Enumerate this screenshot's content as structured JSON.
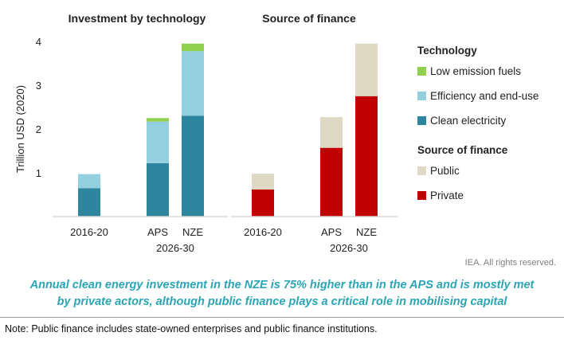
{
  "credit": "IEA. All rights reserved.",
  "caption_line1": "Annual clean energy investment in the NZE is 75% higher than in the APS and is mostly met",
  "caption_line2": "by private actors, although public finance plays a critical role in mobilising capital",
  "note": "Note: Public finance includes state-owned enterprises and public finance institutions.",
  "colors": {
    "low_emission_fuels": "#92d050",
    "efficiency_end_use": "#93cfde",
    "clean_electricity": "#2e869e",
    "public": "#ddd9c4",
    "private": "#c00000",
    "axis": "#d9d9d9",
    "text": "#222222"
  },
  "chart_data": [
    {
      "type": "bar",
      "stacked": true,
      "title": "Investment by technology",
      "ylabel": "Trillion USD (2020)",
      "ylim": [
        0,
        4
      ],
      "yticks": [
        1,
        2,
        3,
        4
      ],
      "categories": [
        "2016-20",
        "APS",
        "NZE"
      ],
      "group_label": "2026-30",
      "group_members": [
        "APS",
        "NZE"
      ],
      "series": [
        {
          "name": "Clean electricity",
          "values": [
            0.65,
            1.22,
            2.3
          ]
        },
        {
          "name": "Efficiency and end-use",
          "values": [
            0.32,
            0.95,
            1.48
          ]
        },
        {
          "name": "Low emission fuels",
          "values": [
            0.0,
            0.08,
            0.17
          ]
        }
      ]
    },
    {
      "type": "bar",
      "stacked": true,
      "title": "Source of finance",
      "ylim": [
        0,
        4
      ],
      "categories": [
        "2016-20",
        "APS",
        "NZE"
      ],
      "group_label": "2026-30",
      "group_members": [
        "APS",
        "NZE"
      ],
      "series": [
        {
          "name": "Private",
          "values": [
            0.62,
            1.57,
            2.75
          ]
        },
        {
          "name": "Public",
          "values": [
            0.36,
            0.7,
            1.2
          ]
        }
      ]
    }
  ],
  "legend": {
    "position": "right",
    "groups": [
      {
        "title": "Technology",
        "items": [
          {
            "label": "Low emission fuels",
            "color": "#92d050"
          },
          {
            "label": "Efficiency and end-use",
            "color": "#93cfde"
          },
          {
            "label": "Clean electricity",
            "color": "#2e869e"
          }
        ]
      },
      {
        "title": "Source of finance",
        "items": [
          {
            "label": "Public",
            "color": "#ddd9c4"
          },
          {
            "label": "Private",
            "color": "#c00000"
          }
        ]
      }
    ]
  }
}
